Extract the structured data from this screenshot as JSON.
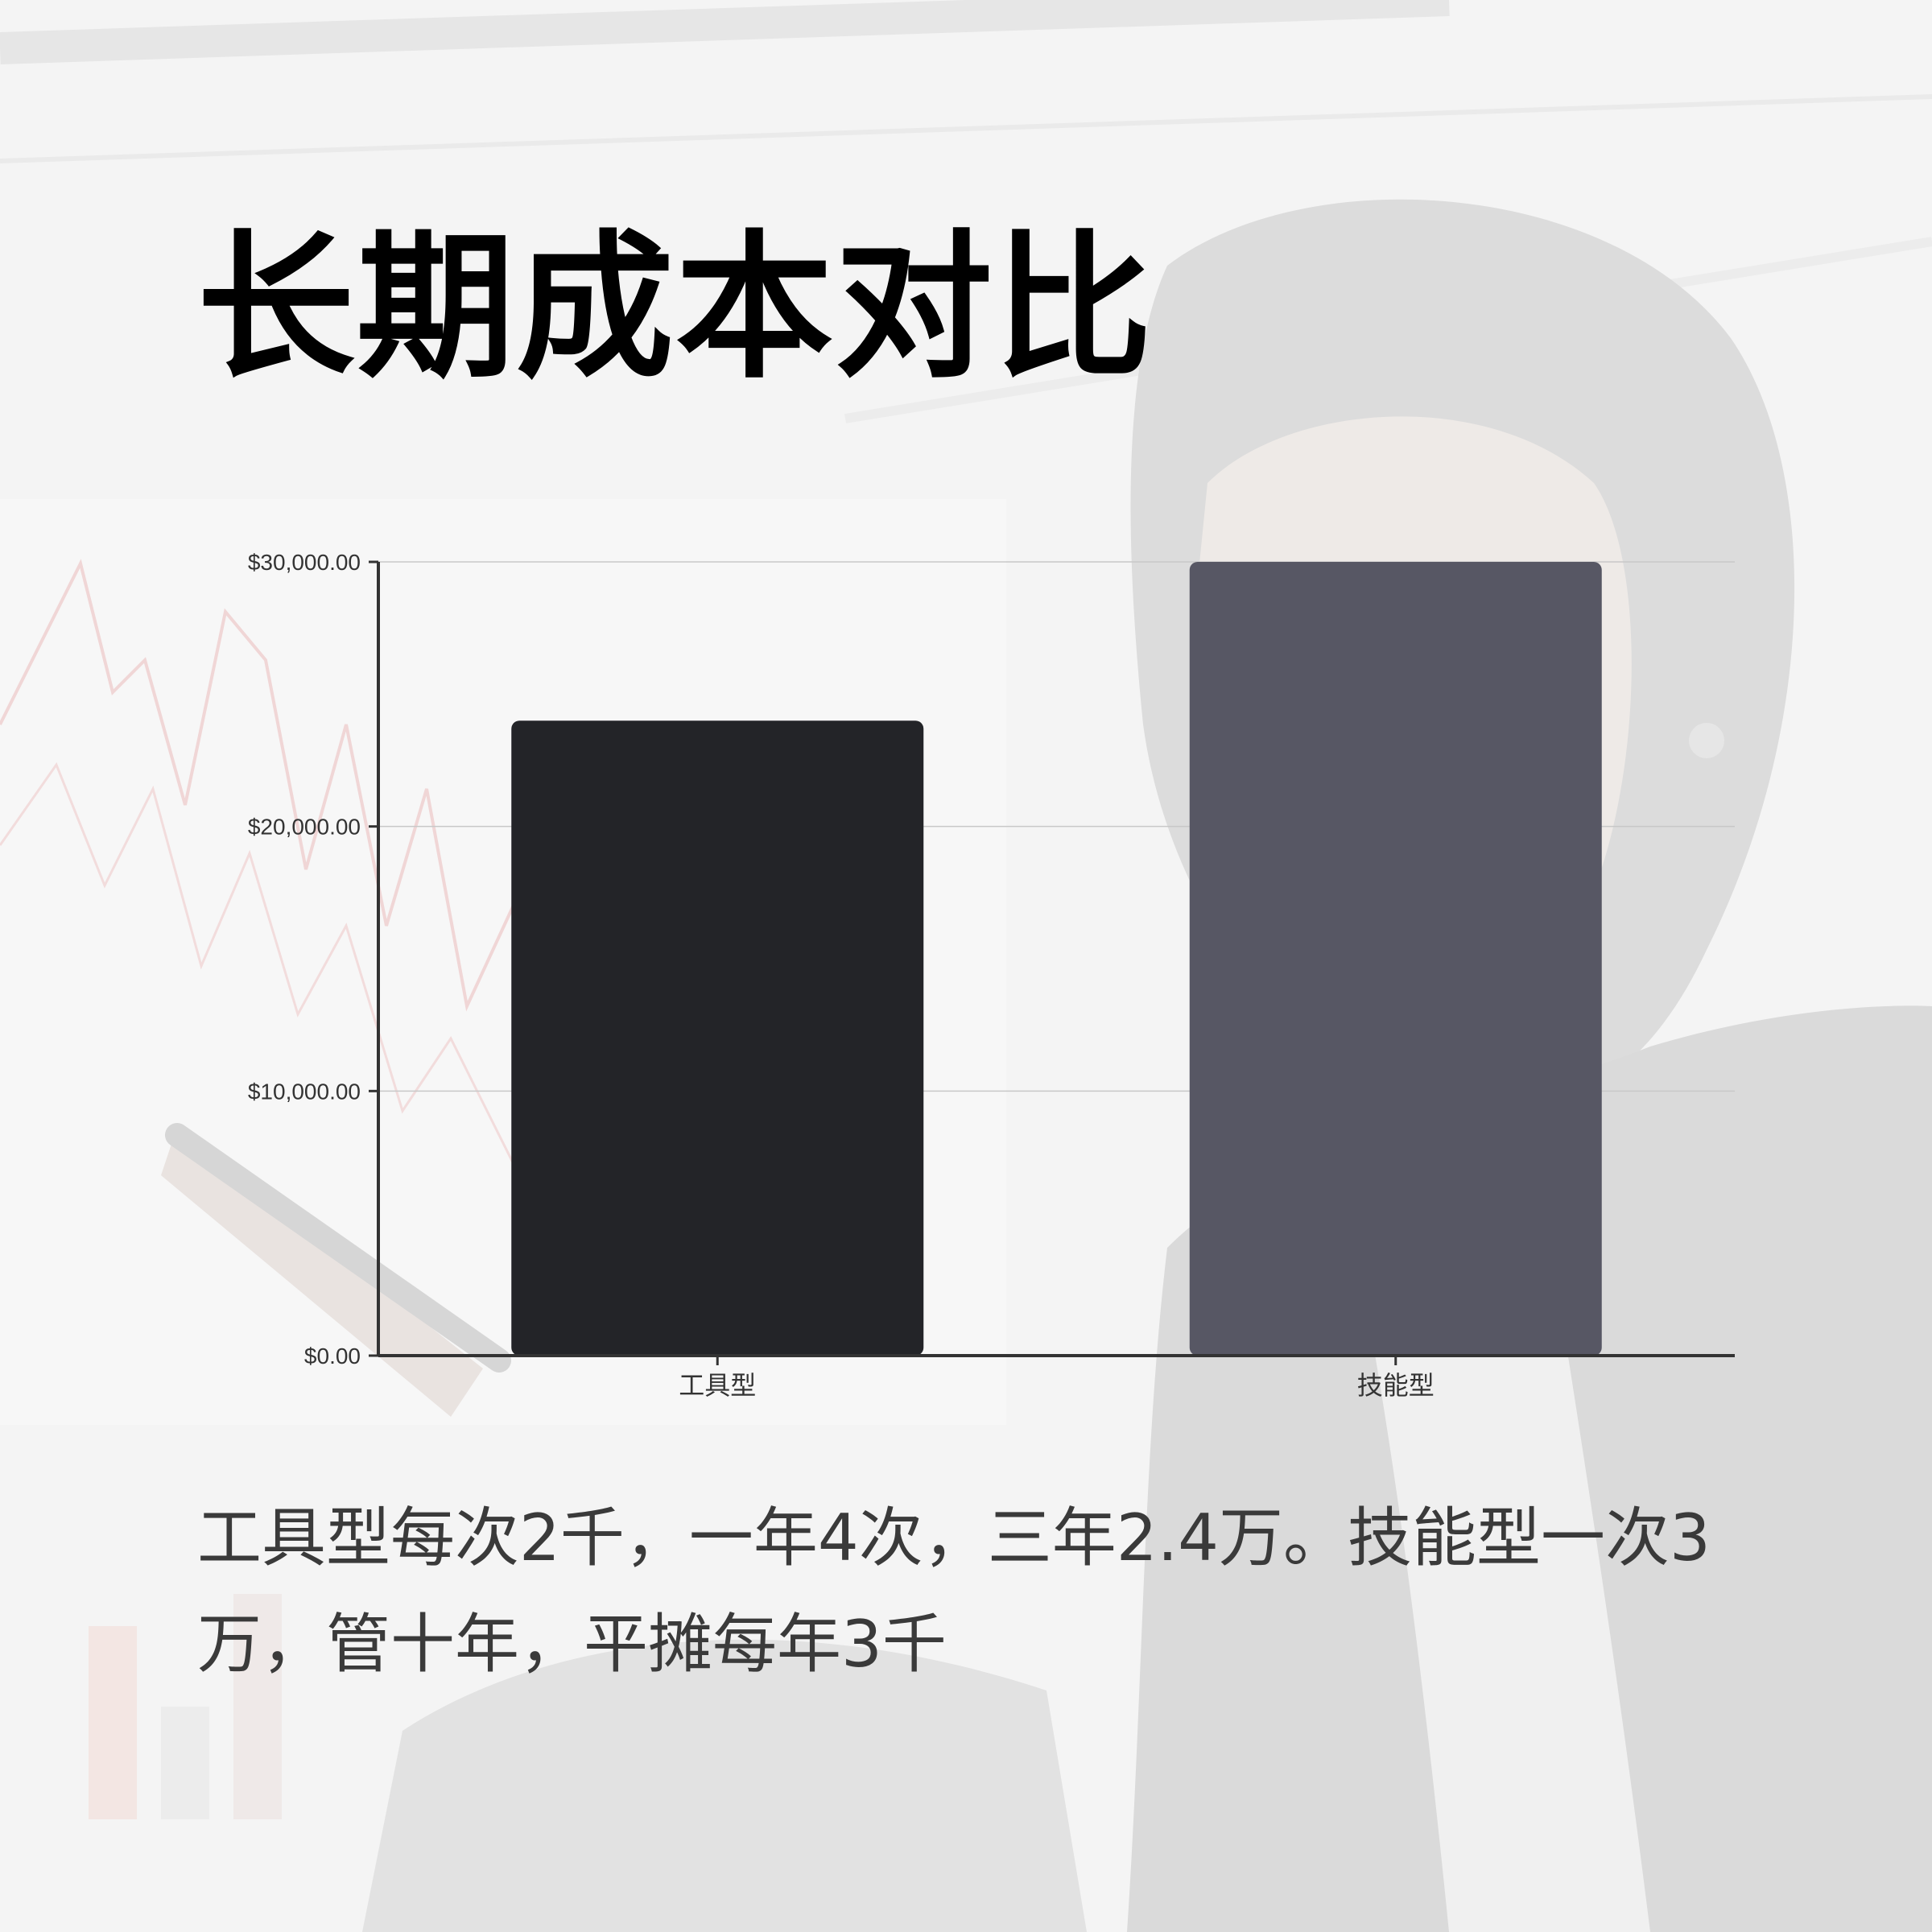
{
  "title": "长期成本对比",
  "caption": "工具型每次2千，一年4次，三年2.4万。技能型一次3万，管十年，平摊每年3千",
  "colors": {
    "background": "#f3f3f3",
    "bar_tool": "#232428",
    "bar_skill": "#575764",
    "axis": "#333333",
    "grid": "#c8c8c8",
    "caption": "#3a3a3a"
  },
  "chart_data": {
    "type": "bar",
    "categories": [
      "工具型",
      "技能型"
    ],
    "values": [
      24000,
      30000
    ],
    "ylim": [
      0,
      30000
    ],
    "yticks": [
      0,
      10000,
      20000,
      30000
    ],
    "ytick_labels": [
      "$0.00",
      "$10,000.00",
      "$20,000.00",
      "$30,000.00"
    ],
    "grid": true,
    "xlabel": "",
    "ylabel": ""
  }
}
